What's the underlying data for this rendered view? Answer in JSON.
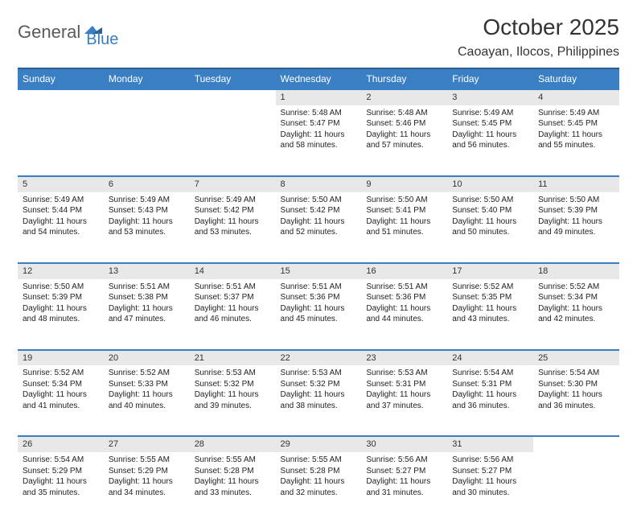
{
  "logo": {
    "text1": "General",
    "text2": "Blue"
  },
  "title": "October 2025",
  "location": "Caoayan, Ilocos, Philippines",
  "colors": {
    "header_bg": "#3a7fc4",
    "header_border": "#2d5f8f",
    "daynum_bg": "#e8e8e8",
    "text": "#333333"
  },
  "weekdays": [
    "Sunday",
    "Monday",
    "Tuesday",
    "Wednesday",
    "Thursday",
    "Friday",
    "Saturday"
  ],
  "weeks": [
    [
      null,
      null,
      null,
      {
        "n": "1",
        "sr": "Sunrise: 5:48 AM",
        "ss": "Sunset: 5:47 PM",
        "d1": "Daylight: 11 hours",
        "d2": "and 58 minutes."
      },
      {
        "n": "2",
        "sr": "Sunrise: 5:48 AM",
        "ss": "Sunset: 5:46 PM",
        "d1": "Daylight: 11 hours",
        "d2": "and 57 minutes."
      },
      {
        "n": "3",
        "sr": "Sunrise: 5:49 AM",
        "ss": "Sunset: 5:45 PM",
        "d1": "Daylight: 11 hours",
        "d2": "and 56 minutes."
      },
      {
        "n": "4",
        "sr": "Sunrise: 5:49 AM",
        "ss": "Sunset: 5:45 PM",
        "d1": "Daylight: 11 hours",
        "d2": "and 55 minutes."
      }
    ],
    [
      {
        "n": "5",
        "sr": "Sunrise: 5:49 AM",
        "ss": "Sunset: 5:44 PM",
        "d1": "Daylight: 11 hours",
        "d2": "and 54 minutes."
      },
      {
        "n": "6",
        "sr": "Sunrise: 5:49 AM",
        "ss": "Sunset: 5:43 PM",
        "d1": "Daylight: 11 hours",
        "d2": "and 53 minutes."
      },
      {
        "n": "7",
        "sr": "Sunrise: 5:49 AM",
        "ss": "Sunset: 5:42 PM",
        "d1": "Daylight: 11 hours",
        "d2": "and 53 minutes."
      },
      {
        "n": "8",
        "sr": "Sunrise: 5:50 AM",
        "ss": "Sunset: 5:42 PM",
        "d1": "Daylight: 11 hours",
        "d2": "and 52 minutes."
      },
      {
        "n": "9",
        "sr": "Sunrise: 5:50 AM",
        "ss": "Sunset: 5:41 PM",
        "d1": "Daylight: 11 hours",
        "d2": "and 51 minutes."
      },
      {
        "n": "10",
        "sr": "Sunrise: 5:50 AM",
        "ss": "Sunset: 5:40 PM",
        "d1": "Daylight: 11 hours",
        "d2": "and 50 minutes."
      },
      {
        "n": "11",
        "sr": "Sunrise: 5:50 AM",
        "ss": "Sunset: 5:39 PM",
        "d1": "Daylight: 11 hours",
        "d2": "and 49 minutes."
      }
    ],
    [
      {
        "n": "12",
        "sr": "Sunrise: 5:50 AM",
        "ss": "Sunset: 5:39 PM",
        "d1": "Daylight: 11 hours",
        "d2": "and 48 minutes."
      },
      {
        "n": "13",
        "sr": "Sunrise: 5:51 AM",
        "ss": "Sunset: 5:38 PM",
        "d1": "Daylight: 11 hours",
        "d2": "and 47 minutes."
      },
      {
        "n": "14",
        "sr": "Sunrise: 5:51 AM",
        "ss": "Sunset: 5:37 PM",
        "d1": "Daylight: 11 hours",
        "d2": "and 46 minutes."
      },
      {
        "n": "15",
        "sr": "Sunrise: 5:51 AM",
        "ss": "Sunset: 5:36 PM",
        "d1": "Daylight: 11 hours",
        "d2": "and 45 minutes."
      },
      {
        "n": "16",
        "sr": "Sunrise: 5:51 AM",
        "ss": "Sunset: 5:36 PM",
        "d1": "Daylight: 11 hours",
        "d2": "and 44 minutes."
      },
      {
        "n": "17",
        "sr": "Sunrise: 5:52 AM",
        "ss": "Sunset: 5:35 PM",
        "d1": "Daylight: 11 hours",
        "d2": "and 43 minutes."
      },
      {
        "n": "18",
        "sr": "Sunrise: 5:52 AM",
        "ss": "Sunset: 5:34 PM",
        "d1": "Daylight: 11 hours",
        "d2": "and 42 minutes."
      }
    ],
    [
      {
        "n": "19",
        "sr": "Sunrise: 5:52 AM",
        "ss": "Sunset: 5:34 PM",
        "d1": "Daylight: 11 hours",
        "d2": "and 41 minutes."
      },
      {
        "n": "20",
        "sr": "Sunrise: 5:52 AM",
        "ss": "Sunset: 5:33 PM",
        "d1": "Daylight: 11 hours",
        "d2": "and 40 minutes."
      },
      {
        "n": "21",
        "sr": "Sunrise: 5:53 AM",
        "ss": "Sunset: 5:32 PM",
        "d1": "Daylight: 11 hours",
        "d2": "and 39 minutes."
      },
      {
        "n": "22",
        "sr": "Sunrise: 5:53 AM",
        "ss": "Sunset: 5:32 PM",
        "d1": "Daylight: 11 hours",
        "d2": "and 38 minutes."
      },
      {
        "n": "23",
        "sr": "Sunrise: 5:53 AM",
        "ss": "Sunset: 5:31 PM",
        "d1": "Daylight: 11 hours",
        "d2": "and 37 minutes."
      },
      {
        "n": "24",
        "sr": "Sunrise: 5:54 AM",
        "ss": "Sunset: 5:31 PM",
        "d1": "Daylight: 11 hours",
        "d2": "and 36 minutes."
      },
      {
        "n": "25",
        "sr": "Sunrise: 5:54 AM",
        "ss": "Sunset: 5:30 PM",
        "d1": "Daylight: 11 hours",
        "d2": "and 36 minutes."
      }
    ],
    [
      {
        "n": "26",
        "sr": "Sunrise: 5:54 AM",
        "ss": "Sunset: 5:29 PM",
        "d1": "Daylight: 11 hours",
        "d2": "and 35 minutes."
      },
      {
        "n": "27",
        "sr": "Sunrise: 5:55 AM",
        "ss": "Sunset: 5:29 PM",
        "d1": "Daylight: 11 hours",
        "d2": "and 34 minutes."
      },
      {
        "n": "28",
        "sr": "Sunrise: 5:55 AM",
        "ss": "Sunset: 5:28 PM",
        "d1": "Daylight: 11 hours",
        "d2": "and 33 minutes."
      },
      {
        "n": "29",
        "sr": "Sunrise: 5:55 AM",
        "ss": "Sunset: 5:28 PM",
        "d1": "Daylight: 11 hours",
        "d2": "and 32 minutes."
      },
      {
        "n": "30",
        "sr": "Sunrise: 5:56 AM",
        "ss": "Sunset: 5:27 PM",
        "d1": "Daylight: 11 hours",
        "d2": "and 31 minutes."
      },
      {
        "n": "31",
        "sr": "Sunrise: 5:56 AM",
        "ss": "Sunset: 5:27 PM",
        "d1": "Daylight: 11 hours",
        "d2": "and 30 minutes."
      },
      null
    ]
  ]
}
